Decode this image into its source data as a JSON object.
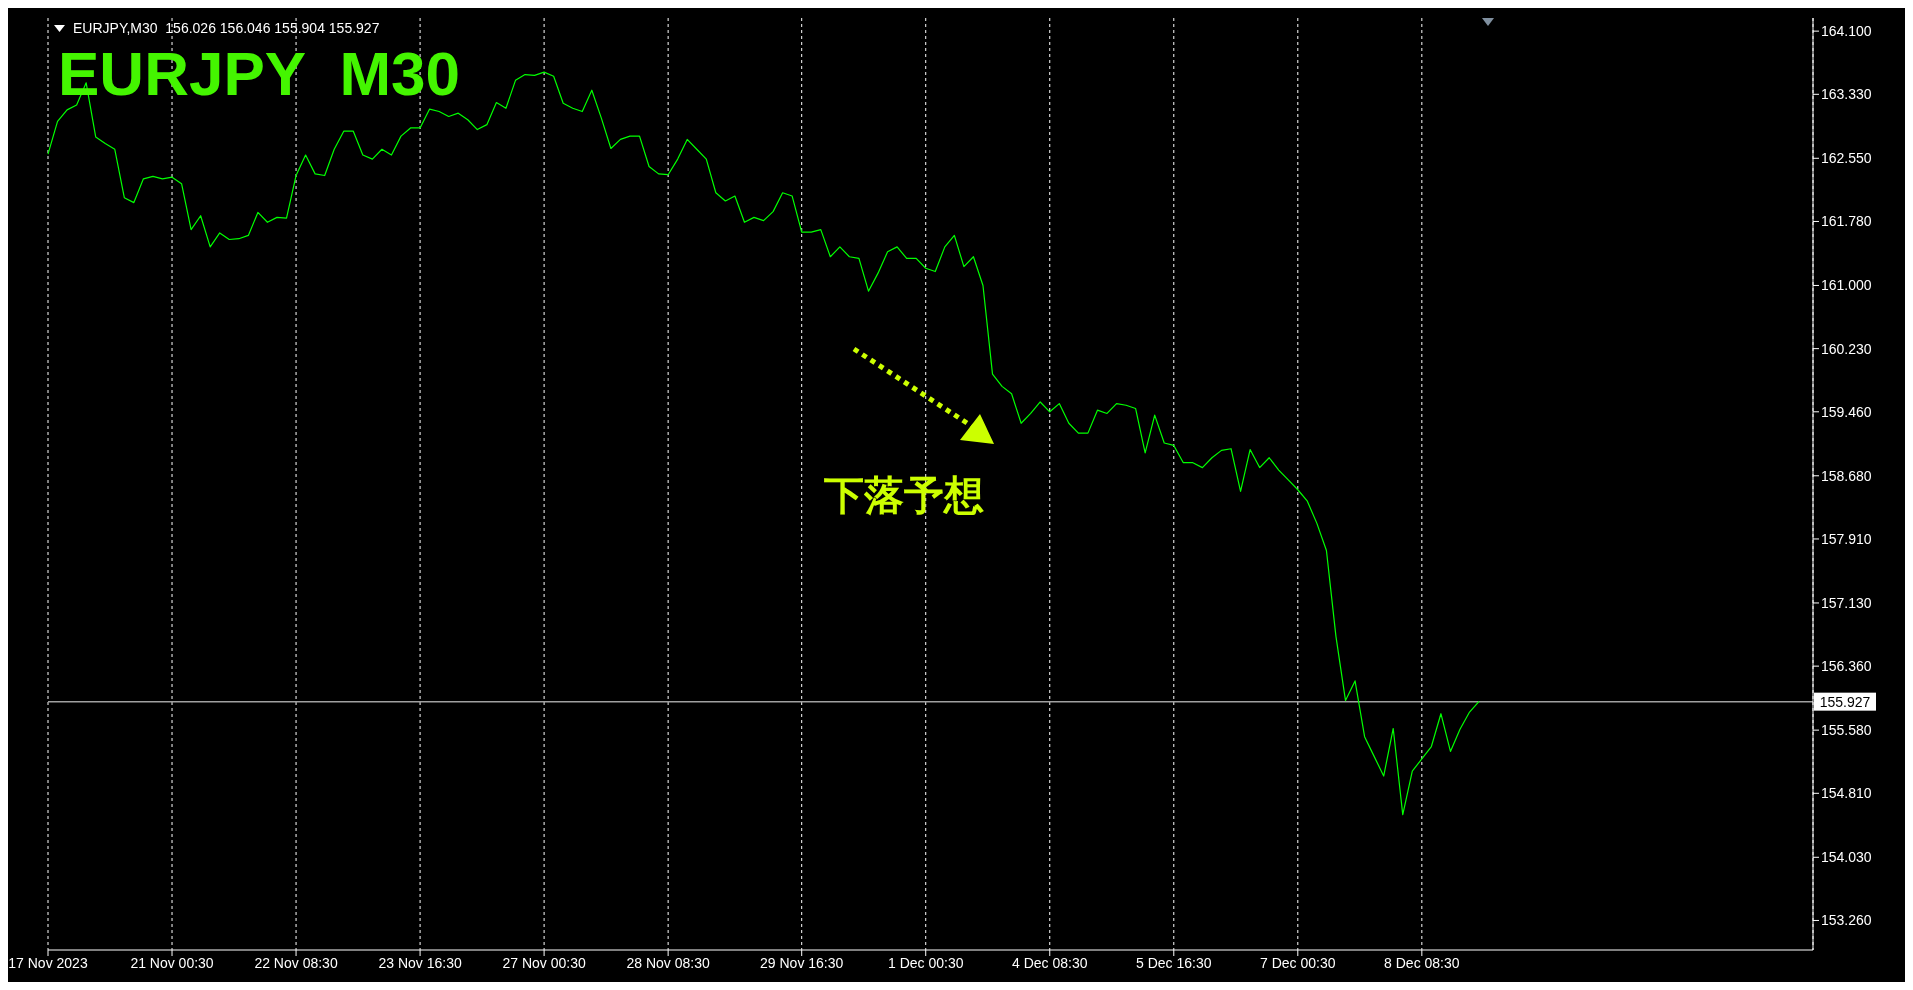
{
  "chart_data": {
    "type": "line",
    "title": "EURJPY  M30",
    "subtitle": "EURJPY,M30  156.026 156.046 155.904 155.927",
    "annotations": [
      "下落予想"
    ],
    "categories": [
      "17 Nov 2023",
      null,
      null,
      null,
      null,
      null,
      null,
      null,
      null,
      null,
      null,
      null,
      null,
      "21 Nov 00:30",
      null,
      null,
      null,
      null,
      null,
      null,
      null,
      null,
      null,
      null,
      null,
      null,
      "22 Nov 08:30",
      null,
      null,
      null,
      null,
      null,
      null,
      null,
      null,
      null,
      null,
      null,
      null,
      "23 Nov 16:30",
      null,
      null,
      null,
      null,
      null,
      null,
      null,
      null,
      null,
      null,
      null,
      null,
      "27 Nov 00:30",
      null,
      null,
      null,
      null,
      null,
      null,
      null,
      null,
      null,
      null,
      null,
      null,
      "28 Nov 08:30",
      null,
      null,
      null,
      null,
      null,
      null,
      null,
      null,
      null,
      null,
      null,
      null,
      null,
      "29 Nov 16:30",
      null,
      null,
      null,
      null,
      null,
      null,
      null,
      null,
      null,
      null,
      null,
      null,
      "1 Dec 00:30",
      null,
      null,
      null,
      null,
      null,
      null,
      null,
      null,
      null,
      null,
      null,
      null,
      "4 Dec 08:30",
      null,
      null,
      null,
      null,
      null,
      null,
      null,
      null,
      null,
      null,
      null,
      null,
      "5 Dec 16:30",
      null,
      null,
      null,
      null,
      null,
      null,
      null,
      null,
      null,
      null,
      null,
      null,
      "7 Dec 00:30",
      null,
      null,
      null,
      null,
      null,
      null,
      null,
      null,
      null,
      null,
      null,
      null,
      "8 Dec 08:30",
      null,
      null,
      null,
      null,
      null,
      null,
      null,
      null,
      null,
      null,
      null,
      null,
      null,
      null,
      null,
      null,
      null,
      null,
      null,
      null,
      null,
      null,
      null,
      null,
      null,
      null,
      null,
      null,
      null,
      null,
      null,
      null,
      null,
      null,
      null,
      null,
      null,
      null,
      null,
      null,
      null
    ],
    "series": [
      {
        "color": "#00ff00",
        "values": [
          162.6,
          163.0,
          163.14,
          163.2,
          163.47,
          162.81,
          162.73,
          162.66,
          162.07,
          162.01,
          162.3,
          162.33,
          162.3,
          162.32,
          162.24,
          161.68,
          161.85,
          161.47,
          161.64,
          161.56,
          161.57,
          161.61,
          161.89,
          161.77,
          161.83,
          161.82,
          162.34,
          162.59,
          162.36,
          162.34,
          162.66,
          162.88,
          162.88,
          162.59,
          162.54,
          162.66,
          162.59,
          162.82,
          162.92,
          162.92,
          163.15,
          163.12,
          163.06,
          163.1,
          163.02,
          162.9,
          162.96,
          163.23,
          163.16,
          163.5,
          163.57,
          163.56,
          163.6,
          163.55,
          163.22,
          163.16,
          163.12,
          163.38,
          163.04,
          162.67,
          162.78,
          162.82,
          162.82,
          162.45,
          162.36,
          162.35,
          162.54,
          162.78,
          162.66,
          162.54,
          162.13,
          162.03,
          162.09,
          161.77,
          161.83,
          161.79,
          161.9,
          162.13,
          162.09,
          161.65,
          161.65,
          161.68,
          161.35,
          161.47,
          161.35,
          161.33,
          160.93,
          161.15,
          161.41,
          161.47,
          161.33,
          161.33,
          161.21,
          161.17,
          161.47,
          161.61,
          161.23,
          161.35,
          161.0,
          159.92,
          159.77,
          159.68,
          159.32,
          159.44,
          159.58,
          159.46,
          159.56,
          159.32,
          159.2,
          159.2,
          159.48,
          159.44,
          159.56,
          159.54,
          159.5,
          158.96,
          159.42,
          159.08,
          159.05,
          158.84,
          158.84,
          158.78,
          158.9,
          158.99,
          159.01,
          158.49,
          159.0,
          158.78,
          158.9,
          158.75,
          158.63,
          158.51,
          158.37,
          158.1,
          157.77,
          156.72,
          155.94,
          156.18,
          155.5,
          155.26,
          155.02,
          155.6,
          154.55,
          155.08,
          155.23,
          155.38,
          155.78,
          155.32,
          155.59,
          155.8,
          155.93,
          null,
          null,
          null,
          null,
          null,
          null,
          null,
          null,
          null,
          null,
          null,
          null,
          null,
          null,
          null,
          null,
          null,
          null,
          null,
          null,
          null,
          null,
          null,
          null,
          null,
          null,
          null,
          null,
          null,
          null,
          null,
          null,
          null,
          null,
          null
        ]
      }
    ],
    "ylim": [
      152.9,
      164.26
    ],
    "yticks": [
      {
        "value": 164.1,
        "label": "164.100"
      },
      {
        "value": 163.33,
        "label": "163.330"
      },
      {
        "value": 162.55,
        "label": "162.550"
      },
      {
        "value": 161.78,
        "label": "161.780"
      },
      {
        "value": 161.0,
        "label": "161.000"
      },
      {
        "value": 160.23,
        "label": "160.230"
      },
      {
        "value": 159.46,
        "label": "159.460"
      },
      {
        "value": 158.68,
        "label": "158.680"
      },
      {
        "value": 157.91,
        "label": "157.910"
      },
      {
        "value": 157.13,
        "label": "157.130"
      },
      {
        "value": 156.36,
        "label": "156.360"
      },
      {
        "value": 155.58,
        "label": "155.580"
      },
      {
        "value": 154.81,
        "label": "154.810"
      },
      {
        "value": 154.03,
        "label": "154.030"
      },
      {
        "value": 153.26,
        "label": "153.260"
      }
    ],
    "ref_lines": [
      {
        "axis": "y",
        "value": 155.927,
        "label": "155.927",
        "color": "#a0a0a0"
      }
    ],
    "grid": "x",
    "legend": false,
    "marker": "none",
    "line_style": "solid"
  }
}
